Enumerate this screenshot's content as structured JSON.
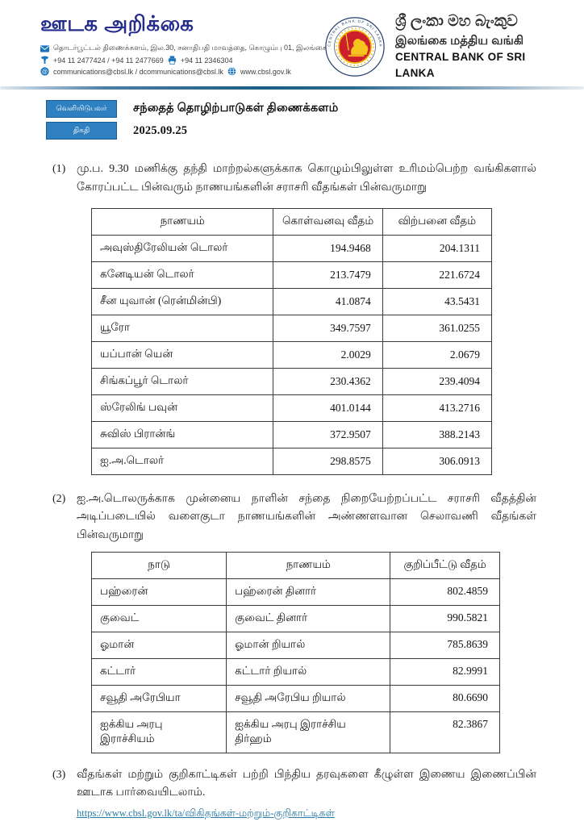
{
  "header": {
    "title": "ஊடக அறிக்கை",
    "contact": {
      "address": "தொடர்பூட்டல் திணைக்களம், இல.30, சனாதிபதி மாவத்தை, கொழும்பு 01, இலங்கை",
      "phones": "+94 11 2477424 / +94 11 2477669",
      "fax": "+94 11  2346304",
      "emails": "communications@cbsl.lk / dcommunications@cbsl.lk",
      "website": "www.cbsl.gov.lk"
    },
    "bank": {
      "name_sinhala": "ශ්‍රී ලංකා මහ බැංකුව",
      "name_tamil": "இலங்கை மத்திய வங்கி",
      "name_english": "CENTRAL BANK OF SRI LANKA",
      "seal_text": "CENTRAL BANK OF SRI LANKA"
    },
    "icons": [
      "envelope-icon",
      "phone-icon",
      "printer-icon",
      "at-sign-icon",
      "globe-icon",
      "bank-seal-logo"
    ]
  },
  "meta": {
    "publisher_label": "வெளியிடுபவர்",
    "publisher_value": "சந்தைத் தொழிற்பாடுகள் திணைக்களம்",
    "date_label": "திகதி",
    "date_value": "2025.09.25"
  },
  "sections": {
    "items": [
      {
        "number": "(1)",
        "text": "மு.ப. 9.30 மணிக்கு தந்தி மாற்றல்களுக்காக கொழும்பிலுள்ள உரிமம்பெற்ற வங்கிகளால் கோரப்பட்ட பின்வரும் நாணயங்களின் சராசரி வீதங்கள் பின்வருமாறு"
      },
      {
        "number": "(2)",
        "text": "ஐ.அ.டொலருக்காக முன்னைய நாளின் சந்தை நிறையேற்றப்பட்ட சராசரி வீதத்தின் அடிப்படையில் வளைகுடா நாணயங்களின் அண்ணளவான செலாவணி வீதங்கள் பின்வருமாறு"
      },
      {
        "number": "(3)",
        "text": "வீதங்கள் மற்றும் குறிகாட்டிகள் பற்றி பிந்திய தரவுகளை கீழுள்ள இணைய இணைப்பின் ஊடாக பார்வையிடலாம்.",
        "link": "https://www.cbsl.gov.lk/ta/விகிதங்கள்-மற்றும்-குறிகாட்டிகள்"
      }
    ]
  },
  "tables": {
    "rates": {
      "headers": [
        "நாணயம்",
        "கொள்வனவு வீதம்",
        "விற்பனை வீதம்"
      ],
      "rows": [
        [
          "அவுஸ்திரேலியன் டொலர்",
          "194.9468",
          "204.1311"
        ],
        [
          "கனேடியன் டொலர்",
          "213.7479",
          "221.6724"
        ],
        [
          "சீன யுவான் (ரென்மின்பி)",
          "41.0874",
          "43.5431"
        ],
        [
          "யூரோ",
          "349.7597",
          "361.0255"
        ],
        [
          "யப்பான் யென்",
          "2.0029",
          "2.0679"
        ],
        [
          "சிங்கப்பூர் டொலர்",
          "230.4362",
          "239.4094"
        ],
        [
          "ஸ்ரேலிங் பவுன்",
          "401.0144",
          "413.2716"
        ],
        [
          "சுவிஸ் பிரான்ங்",
          "372.9507",
          "388.2143"
        ],
        [
          "ஐ.அ.டொலர்",
          "298.8575",
          "306.0913"
        ]
      ]
    },
    "gulf": {
      "headers": [
        "நாடு",
        "நாணயம்",
        "குறிப்பீட்டு வீதம்"
      ],
      "rows": [
        [
          "பஹ்ரைன்",
          "பஹ்ரைன் தினார்",
          "802.4859"
        ],
        [
          "குவைட்",
          "குவைட் தினார்",
          "990.5821"
        ],
        [
          "ஓமான்",
          "ஓமான் றியால்",
          "785.8639"
        ],
        [
          "கட்டார்",
          "கட்டார் றியால்",
          "82.9991"
        ],
        [
          "சவூதி அரேபியா",
          "சவூதி அரேபிய றியால்",
          "80.6690"
        ],
        [
          "ஐக்கிய அரபு இராச்சியம்",
          "ஐக்கிய அரபு இராச்சிய திர்ஹம்",
          "82.3867"
        ]
      ]
    }
  },
  "colors": {
    "title_navy": "#252d8c",
    "badge_blue": "#2f80c0",
    "badge_border": "#1c5c94",
    "rule_blue": "#1b5c88",
    "link_teal": "#2b7ba6",
    "seal_red": "#cc1f2e",
    "seal_yellow": "#f2b705",
    "seal_ring_navy": "#25406e",
    "icon_blue": "#1c75bc"
  }
}
